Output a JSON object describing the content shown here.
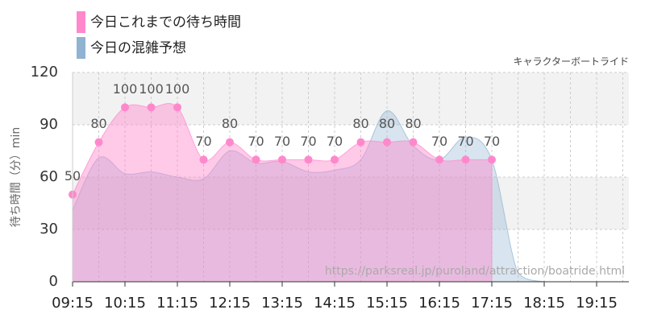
{
  "chart_data": {
    "type": "area",
    "subtitle": "キャラクターボートライド",
    "ylabel": "待ち時間（分）min",
    "watermark": "https://parksreal.jp/puroland/attraction/boatride.html",
    "categories": [
      "09:15",
      null,
      "10:15",
      null,
      "11:15",
      null,
      "12:15",
      null,
      "13:15",
      null,
      "14:15",
      null,
      "15:15",
      null,
      "16:15",
      null,
      "17:15",
      null,
      "18:15",
      null,
      "19:15",
      null
    ],
    "series": [
      {
        "name": "今日これまでの待ち時間",
        "color": "#ff88cc",
        "values": [
          50,
          80,
          100,
          100,
          100,
          70,
          80,
          70,
          70,
          70,
          70,
          80,
          80,
          80,
          70,
          70,
          70,
          null,
          null,
          null,
          null,
          null
        ]
      },
      {
        "name": "今日の混雑予想",
        "color": "#8fb3d0",
        "values": [
          41,
          71,
          62,
          63,
          60,
          59,
          75,
          68,
          69,
          63,
          64,
          70,
          98,
          78,
          70,
          83,
          70,
          5,
          0,
          0,
          0,
          0
        ]
      }
    ],
    "ylim": [
      0,
      120
    ],
    "yticks": [
      0,
      30,
      60,
      90,
      120
    ]
  }
}
